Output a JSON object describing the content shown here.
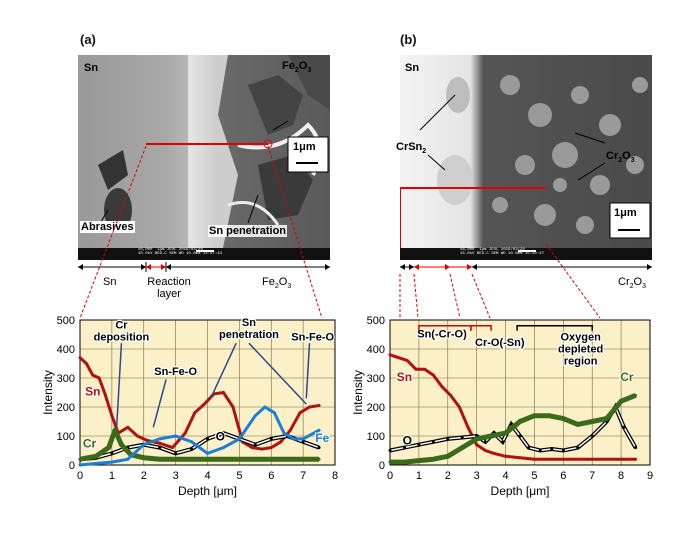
{
  "panels": {
    "a": {
      "label": "(a)",
      "sem": {
        "material_left": "Sn",
        "material_right_main": "Fe",
        "material_right_sub1": "2",
        "material_right_mid": "O",
        "material_right_sub2": "3",
        "abrasives": "Abrasives",
        "penetration": "Sn penetration",
        "scale": "1μm",
        "databar_left": "x8,000",
        "databar_mid1": "1μm",
        "databar_mid2": "JEOL",
        "databar_mid3": "2019/03/20",
        "databar_r1": "15.0kV BED-C",
        "databar_r2": "SEM",
        "databar_r3": "WD 10.0mm 14:47:43"
      },
      "regions": {
        "left": "Sn",
        "middle_line1": "Reaction",
        "middle_line2": "layer",
        "right_main": "Fe",
        "right_sub1": "2",
        "right_mid": "O",
        "right_sub2": "3"
      }
    },
    "b": {
      "label": "(b)",
      "sem": {
        "material_left": "Sn",
        "crsn_main": "CrSn",
        "crsn_sub": "2",
        "cr2o3_main": "Cr",
        "cr2o3_sub1": "2",
        "cr2o3_mid": "O",
        "cr2o3_sub2": "3",
        "scale": "1μm",
        "databar_left": "x8,000",
        "databar_mid1": "1μm",
        "databar_mid2": "JEOL",
        "databar_mid3": "2019/03/20",
        "databar_r1": "15.0kV BED-C",
        "databar_r2": "SEM",
        "databar_r3": "WD 10.0mm 15:20:47"
      },
      "regions": {
        "right_main": "Cr",
        "right_sub1": "2",
        "right_mid": "O",
        "right_sub2": "3"
      }
    }
  },
  "chart_data": [
    {
      "type": "line",
      "panel": "a",
      "xlabel": "Depth [μm]",
      "ylabel": "Intensity",
      "xlim": [
        0,
        8
      ],
      "ylim": [
        0,
        500
      ],
      "xticks": [
        0,
        1,
        2,
        3,
        4,
        5,
        6,
        7,
        8
      ],
      "yticks": [
        0,
        100,
        200,
        300,
        400,
        500
      ],
      "grid": true,
      "series": [
        {
          "name": "Sn",
          "color": "#b01010",
          "x": [
            0,
            0.2,
            0.4,
            0.6,
            0.8,
            1.0,
            1.2,
            1.5,
            1.8,
            2.1,
            2.5,
            2.9,
            3.3,
            3.6,
            3.9,
            4.2,
            4.5,
            4.8,
            5.1,
            5.4,
            5.7,
            6.0,
            6.3,
            6.6,
            6.9,
            7.2,
            7.5
          ],
          "y": [
            370,
            350,
            310,
            300,
            240,
            170,
            110,
            130,
            100,
            85,
            75,
            60,
            110,
            180,
            210,
            245,
            250,
            200,
            80,
            60,
            55,
            60,
            80,
            120,
            180,
            200,
            205
          ]
        },
        {
          "name": "O",
          "color": "#000000",
          "x": [
            0,
            0.5,
            1.0,
            1.5,
            2.0,
            2.5,
            3.0,
            3.5,
            4.0,
            4.5,
            5.0,
            5.5,
            6.0,
            6.5,
            7.0,
            7.5
          ],
          "y": [
            20,
            25,
            40,
            60,
            70,
            60,
            40,
            55,
            90,
            110,
            90,
            70,
            90,
            100,
            80,
            60
          ]
        },
        {
          "name": "Cr",
          "color": "#3a6a1a",
          "x": [
            0,
            0.5,
            0.9,
            1.1,
            1.3,
            1.6,
            2.0,
            2.5,
            3.0,
            4.0,
            5.0,
            6.0,
            7.0,
            7.5
          ],
          "y": [
            20,
            30,
            60,
            120,
            70,
            35,
            25,
            20,
            20,
            20,
            20,
            20,
            20,
            20
          ]
        },
        {
          "name": "Fe",
          "color": "#1a7fd4",
          "x": [
            0,
            0.5,
            1.0,
            1.5,
            2.0,
            2.5,
            3.0,
            3.5,
            4.0,
            4.5,
            5.0,
            5.5,
            5.8,
            6.1,
            6.4,
            6.7,
            7.0,
            7.5
          ],
          "y": [
            0,
            5,
            10,
            20,
            70,
            90,
            100,
            80,
            40,
            60,
            90,
            170,
            200,
            180,
            110,
            90,
            90,
            120
          ]
        }
      ],
      "annotations": [
        {
          "text": "Cr deposition"
        },
        {
          "text": "Sn penetration"
        },
        {
          "text": "Sn-Fe-O"
        },
        {
          "text": "Sn-Fe-O"
        }
      ]
    },
    {
      "type": "line",
      "panel": "b",
      "xlabel": "Depth [μm]",
      "ylabel": "Intensity",
      "xlim": [
        0,
        9
      ],
      "ylim": [
        0,
        500
      ],
      "xticks": [
        0,
        1,
        2,
        3,
        4,
        5,
        6,
        7,
        8,
        9
      ],
      "yticks": [
        0,
        100,
        200,
        300,
        400,
        500
      ],
      "grid": true,
      "series": [
        {
          "name": "Sn",
          "color": "#b01010",
          "x": [
            0,
            0.3,
            0.6,
            0.9,
            1.2,
            1.5,
            1.8,
            2.1,
            2.4,
            2.7,
            3.0,
            3.3,
            3.6,
            4.0,
            4.5,
            5.0,
            6.0,
            7.0,
            8.0,
            8.5
          ],
          "y": [
            380,
            370,
            360,
            330,
            330,
            310,
            270,
            240,
            200,
            130,
            70,
            50,
            40,
            30,
            25,
            20,
            20,
            20,
            20,
            20
          ]
        },
        {
          "name": "O",
          "color": "#000000",
          "x": [
            0,
            0.5,
            1.0,
            1.5,
            2.0,
            2.5,
            3.0,
            3.3,
            3.6,
            3.9,
            4.2,
            4.5,
            4.8,
            5.2,
            5.6,
            6.0,
            6.5,
            7.0,
            7.5,
            7.8,
            8.1,
            8.5
          ],
          "y": [
            50,
            60,
            70,
            80,
            90,
            95,
            100,
            80,
            110,
            80,
            140,
            100,
            60,
            50,
            55,
            50,
            60,
            100,
            150,
            200,
            130,
            60
          ]
        },
        {
          "name": "Cr",
          "color": "#3a6a1a",
          "x": [
            0,
            0.5,
            1.0,
            1.5,
            2.0,
            2.5,
            3.0,
            3.5,
            4.0,
            4.5,
            5.0,
            5.5,
            6.0,
            6.5,
            7.0,
            7.5,
            8.0,
            8.5
          ],
          "y": [
            10,
            10,
            15,
            20,
            30,
            60,
            90,
            100,
            110,
            150,
            170,
            170,
            160,
            140,
            150,
            160,
            220,
            240
          ]
        }
      ],
      "annotations": [
        {
          "text": "Sn(-Cr-O)"
        },
        {
          "text": "Cr-O(-Sn)"
        },
        {
          "text": "Oxygen depleted region"
        }
      ]
    }
  ]
}
